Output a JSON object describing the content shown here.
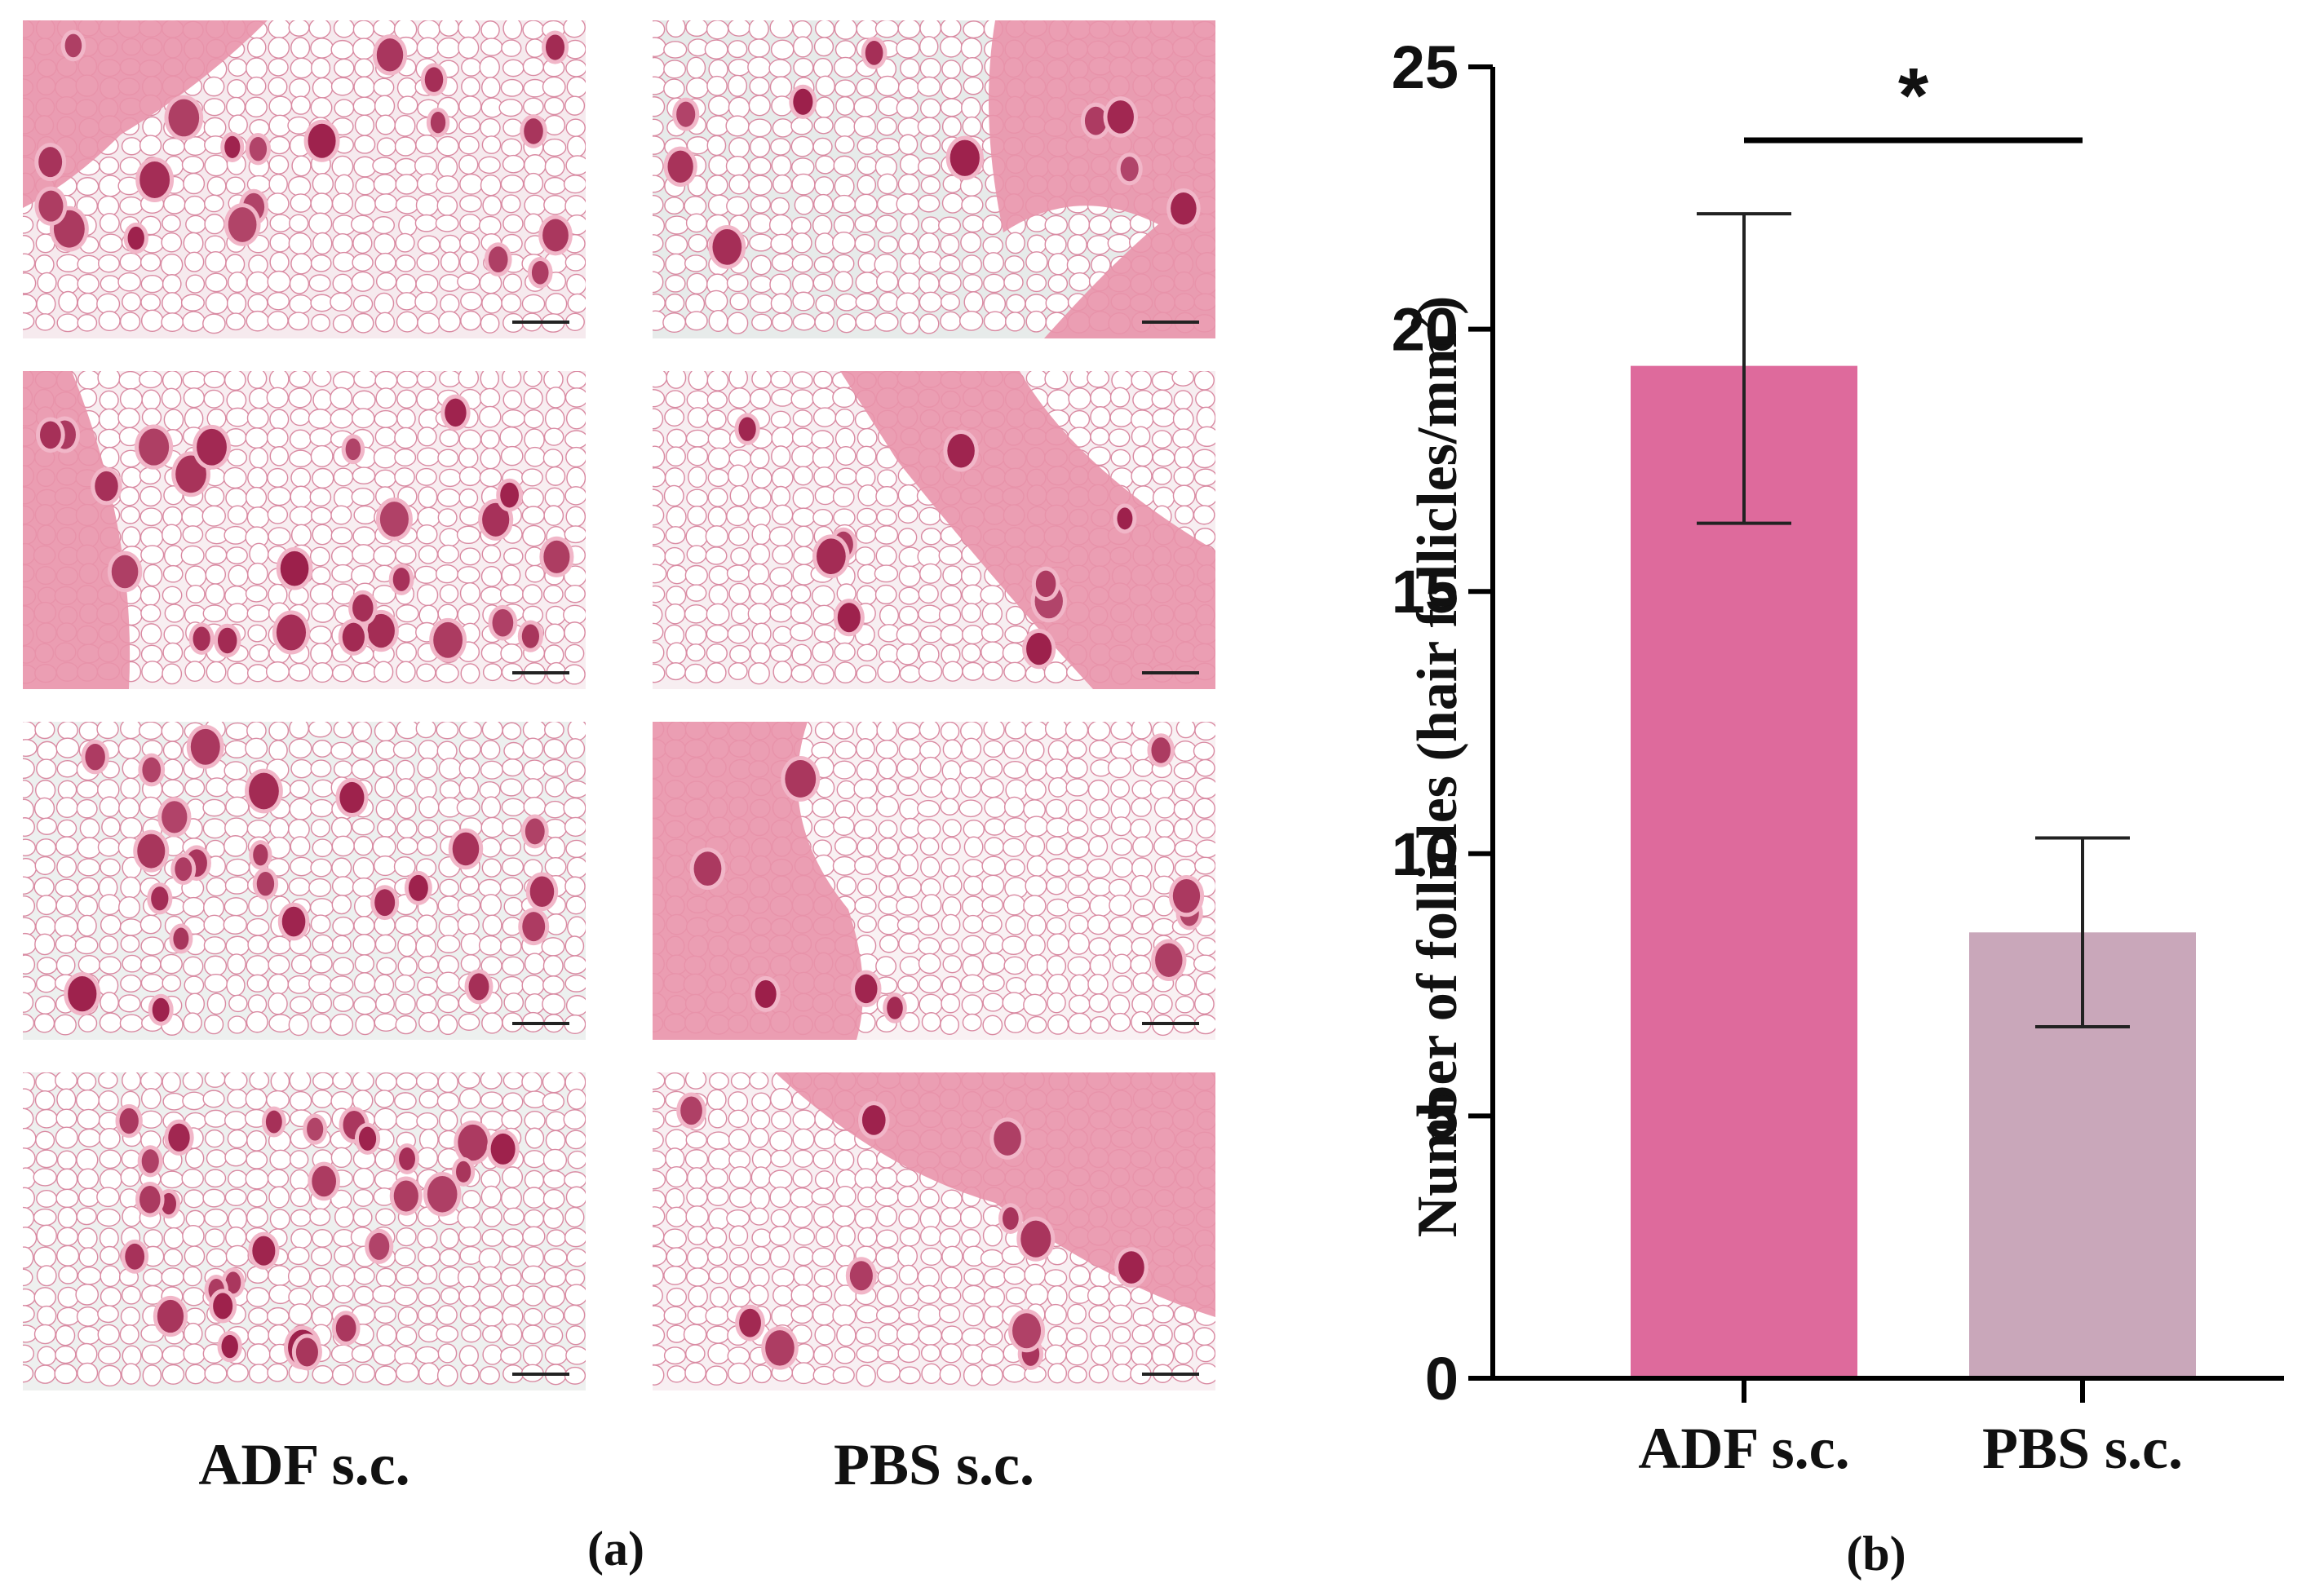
{
  "panel_a": {
    "label": "(a)",
    "columns": [
      {
        "label": "ADF s.c."
      },
      {
        "label": "PBS s.c."
      }
    ]
  },
  "panel_b": {
    "label": "(b)"
  },
  "colors": {
    "adf_bar": "#de6a9c",
    "pbs_bar": "#c9a7ba",
    "axis": "#000000",
    "tissue_pink": "#e88aa6",
    "follicle_dark": "#9c1f4a"
  },
  "chart_data": {
    "type": "bar",
    "categories": [
      "ADF s.c.",
      "PBS s.c."
    ],
    "values": [
      19.3,
      8.5
    ],
    "error_low": [
      16.3,
      6.7
    ],
    "error_high": [
      22.2,
      10.3
    ],
    "ylabel": "Number of follicles (hair follicles/mm",
    "ylabel_sup": "2",
    "ylabel_end": ")",
    "ylim": [
      0,
      25
    ],
    "yticks": [
      0,
      5,
      10,
      15,
      20,
      25
    ],
    "significance": "*",
    "grid": false
  }
}
